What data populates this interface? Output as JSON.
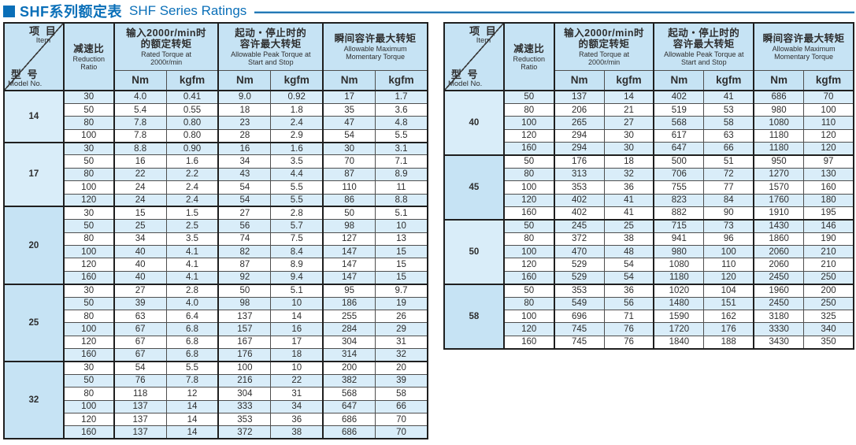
{
  "title": {
    "zh": "SHF系列额定表",
    "en": "SHF Series Ratings"
  },
  "colors": {
    "accent": "#0a6fb8",
    "header_bg": "#c6e3f4",
    "stripe_bg": "#d9edf9"
  },
  "header": {
    "item_zh": "项  目",
    "item_en": "Item",
    "model_zh": "型  号",
    "model_en": "Model No.",
    "ratio_zh": "减速比",
    "ratio_en_lines": [
      "Reduction",
      "Ratio"
    ],
    "groups": [
      {
        "zh_lines": [
          "输入2000r/min时",
          "的额定转矩"
        ],
        "en_lines": [
          "Rated Torque at",
          "2000r/min"
        ]
      },
      {
        "zh_lines": [
          "起动・停止时的",
          "容许最大转矩"
        ],
        "en_lines": [
          "Allowable Peak Torque at",
          "Start and Stop"
        ]
      },
      {
        "zh_lines": [
          "瞬间容许最大转矩"
        ],
        "en_lines": [
          "Allowable Maximum",
          "Momentary Torque"
        ]
      }
    ],
    "units": [
      "Nm",
      "kgfm"
    ]
  },
  "tables": [
    {
      "id": "left",
      "models": [
        {
          "model": "14",
          "rows": [
            [
              "30",
              "4.0",
              "0.41",
              "9.0",
              "0.92",
              "17",
              "1.7"
            ],
            [
              "50",
              "5.4",
              "0.55",
              "18",
              "1.8",
              "35",
              "3.6"
            ],
            [
              "80",
              "7.8",
              "0.80",
              "23",
              "2.4",
              "47",
              "4.8"
            ],
            [
              "100",
              "7.8",
              "0.80",
              "28",
              "2.9",
              "54",
              "5.5"
            ]
          ]
        },
        {
          "model": "17",
          "rows": [
            [
              "30",
              "8.8",
              "0.90",
              "16",
              "1.6",
              "30",
              "3.1"
            ],
            [
              "50",
              "16",
              "1.6",
              "34",
              "3.5",
              "70",
              "7.1"
            ],
            [
              "80",
              "22",
              "2.2",
              "43",
              "4.4",
              "87",
              "8.9"
            ],
            [
              "100",
              "24",
              "2.4",
              "54",
              "5.5",
              "110",
              "11"
            ],
            [
              "120",
              "24",
              "2.4",
              "54",
              "5.5",
              "86",
              "8.8"
            ]
          ]
        },
        {
          "model": "20",
          "rows": [
            [
              "30",
              "15",
              "1.5",
              "27",
              "2.8",
              "50",
              "5.1"
            ],
            [
              "50",
              "25",
              "2.5",
              "56",
              "5.7",
              "98",
              "10"
            ],
            [
              "80",
              "34",
              "3.5",
              "74",
              "7.5",
              "127",
              "13"
            ],
            [
              "100",
              "40",
              "4.1",
              "82",
              "8.4",
              "147",
              "15"
            ],
            [
              "120",
              "40",
              "4.1",
              "87",
              "8.9",
              "147",
              "15"
            ],
            [
              "160",
              "40",
              "4.1",
              "92",
              "9.4",
              "147",
              "15"
            ]
          ]
        },
        {
          "model": "25",
          "rows": [
            [
              "30",
              "27",
              "2.8",
              "50",
              "5.1",
              "95",
              "9.7"
            ],
            [
              "50",
              "39",
              "4.0",
              "98",
              "10",
              "186",
              "19"
            ],
            [
              "80",
              "63",
              "6.4",
              "137",
              "14",
              "255",
              "26"
            ],
            [
              "100",
              "67",
              "6.8",
              "157",
              "16",
              "284",
              "29"
            ],
            [
              "120",
              "67",
              "6.8",
              "167",
              "17",
              "304",
              "31"
            ],
            [
              "160",
              "67",
              "6.8",
              "176",
              "18",
              "314",
              "32"
            ]
          ]
        },
        {
          "model": "32",
          "rows": [
            [
              "30",
              "54",
              "5.5",
              "100",
              "10",
              "200",
              "20"
            ],
            [
              "50",
              "76",
              "7.8",
              "216",
              "22",
              "382",
              "39"
            ],
            [
              "80",
              "118",
              "12",
              "304",
              "31",
              "568",
              "58"
            ],
            [
              "100",
              "137",
              "14",
              "333",
              "34",
              "647",
              "66"
            ],
            [
              "120",
              "137",
              "14",
              "353",
              "36",
              "686",
              "70"
            ],
            [
              "160",
              "137",
              "14",
              "372",
              "38",
              "686",
              "70"
            ]
          ]
        }
      ]
    },
    {
      "id": "right",
      "models": [
        {
          "model": "40",
          "rows": [
            [
              "50",
              "137",
              "14",
              "402",
              "41",
              "686",
              "70"
            ],
            [
              "80",
              "206",
              "21",
              "519",
              "53",
              "980",
              "100"
            ],
            [
              "100",
              "265",
              "27",
              "568",
              "58",
              "1080",
              "110"
            ],
            [
              "120",
              "294",
              "30",
              "617",
              "63",
              "1180",
              "120"
            ],
            [
              "160",
              "294",
              "30",
              "647",
              "66",
              "1180",
              "120"
            ]
          ]
        },
        {
          "model": "45",
          "rows": [
            [
              "50",
              "176",
              "18",
              "500",
              "51",
              "950",
              "97"
            ],
            [
              "80",
              "313",
              "32",
              "706",
              "72",
              "1270",
              "130"
            ],
            [
              "100",
              "353",
              "36",
              "755",
              "77",
              "1570",
              "160"
            ],
            [
              "120",
              "402",
              "41",
              "823",
              "84",
              "1760",
              "180"
            ],
            [
              "160",
              "402",
              "41",
              "882",
              "90",
              "1910",
              "195"
            ]
          ]
        },
        {
          "model": "50",
          "rows": [
            [
              "50",
              "245",
              "25",
              "715",
              "73",
              "1430",
              "146"
            ],
            [
              "80",
              "372",
              "38",
              "941",
              "96",
              "1860",
              "190"
            ],
            [
              "100",
              "470",
              "48",
              "980",
              "100",
              "2060",
              "210"
            ],
            [
              "120",
              "529",
              "54",
              "1080",
              "110",
              "2060",
              "210"
            ],
            [
              "160",
              "529",
              "54",
              "1180",
              "120",
              "2450",
              "250"
            ]
          ]
        },
        {
          "model": "58",
          "rows": [
            [
              "50",
              "353",
              "36",
              "1020",
              "104",
              "1960",
              "200"
            ],
            [
              "80",
              "549",
              "56",
              "1480",
              "151",
              "2450",
              "250"
            ],
            [
              "100",
              "696",
              "71",
              "1590",
              "162",
              "3180",
              "325"
            ],
            [
              "120",
              "745",
              "76",
              "1720",
              "176",
              "3330",
              "340"
            ],
            [
              "160",
              "745",
              "76",
              "1840",
              "188",
              "3430",
              "350"
            ]
          ]
        }
      ]
    }
  ]
}
